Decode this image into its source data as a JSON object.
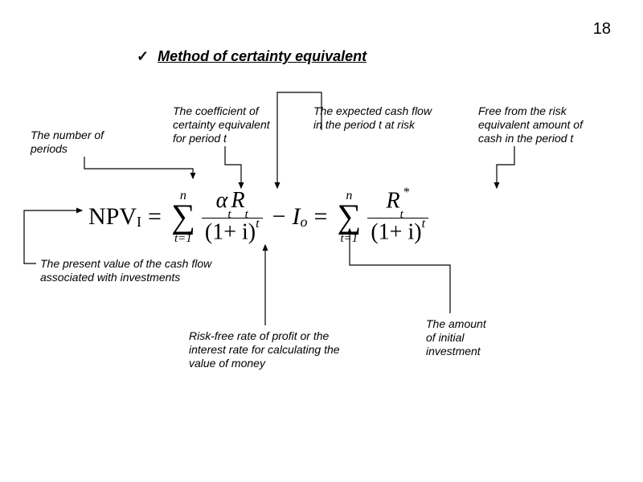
{
  "page_number": "18",
  "title": {
    "checkmark": "✓",
    "text": "Method of certainty equivalent"
  },
  "labels": {
    "num_periods": "The number of\nperiods",
    "coeff": "The coefficient of\ncertainty equivalent\nfor period t",
    "expected_cf": "The expected cash flow\nin the period t at risk",
    "free_risk": "Free from the risk\nequivalent amount of\ncash in the period t",
    "present_value": "The present value of the cash flow\nassociated with investments",
    "risk_free_rate": "Risk-free rate of profit or the\ninterest rate for calculating the\nvalue of money",
    "initial_inv": "The amount\nof initial\ninvestment"
  },
  "formula": {
    "lhs": "NPV",
    "lhs_sub": "I",
    "eq": "=",
    "sum_top": "n",
    "sum_bottom": "t=1",
    "frac1_num_alpha": "α",
    "frac1_num_alpha_sub": "t",
    "frac1_num_R": "R",
    "frac1_num_R_sub": "t",
    "frac_den_base": "(1+ i)",
    "frac_den_exp": "t",
    "minus": "−",
    "I": "I",
    "I_sub": "o",
    "frac2_num_R": "R",
    "frac2_num_R_sub": "t",
    "frac2_num_R_sup": "*"
  },
  "style": {
    "arrow_color": "#000000",
    "arrow_width": 1.2
  }
}
